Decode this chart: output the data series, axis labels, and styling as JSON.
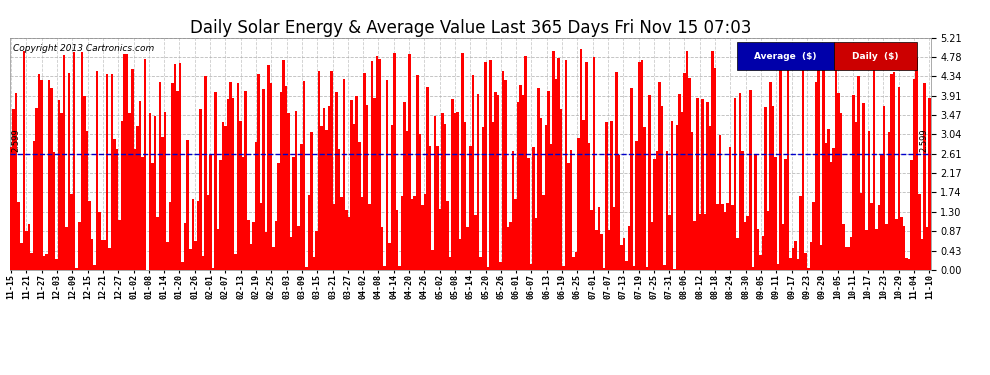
{
  "title": "Daily Solar Energy & Average Value Last 365 Days Fri Nov 15 07:03",
  "copyright": "Copyright 2013 Cartronics.com",
  "average_value": 2.599,
  "ylim": [
    0.0,
    5.21
  ],
  "yticks": [
    0.0,
    0.43,
    0.87,
    1.3,
    1.74,
    2.17,
    2.61,
    3.04,
    3.47,
    3.91,
    4.34,
    4.78,
    5.21
  ],
  "bar_color": "#FF0000",
  "avg_line_color": "#0000CC",
  "background_color": "#FFFFFF",
  "grid_color": "#AAAAAA",
  "title_fontsize": 12,
  "legend_avg_bg": "#0000AA",
  "legend_daily_bg": "#CC0000",
  "xtick_labels": [
    "11-15",
    "11-21",
    "11-27",
    "12-03",
    "12-09",
    "12-15",
    "12-21",
    "12-27",
    "01-02",
    "01-08",
    "01-14",
    "01-20",
    "01-26",
    "02-01",
    "02-07",
    "02-13",
    "02-19",
    "02-25",
    "03-03",
    "03-09",
    "03-15",
    "03-21",
    "03-27",
    "04-02",
    "04-08",
    "04-14",
    "04-20",
    "04-26",
    "05-02",
    "05-08",
    "05-14",
    "05-20",
    "05-26",
    "06-01",
    "06-07",
    "06-13",
    "06-19",
    "06-25",
    "07-01",
    "07-07",
    "07-13",
    "07-19",
    "07-25",
    "07-31",
    "08-06",
    "08-12",
    "08-18",
    "08-24",
    "08-30",
    "09-05",
    "09-11",
    "09-17",
    "09-23",
    "09-29",
    "10-05",
    "10-11",
    "10-17",
    "10-23",
    "10-29",
    "11-04",
    "11-10"
  ],
  "num_bars": 365
}
